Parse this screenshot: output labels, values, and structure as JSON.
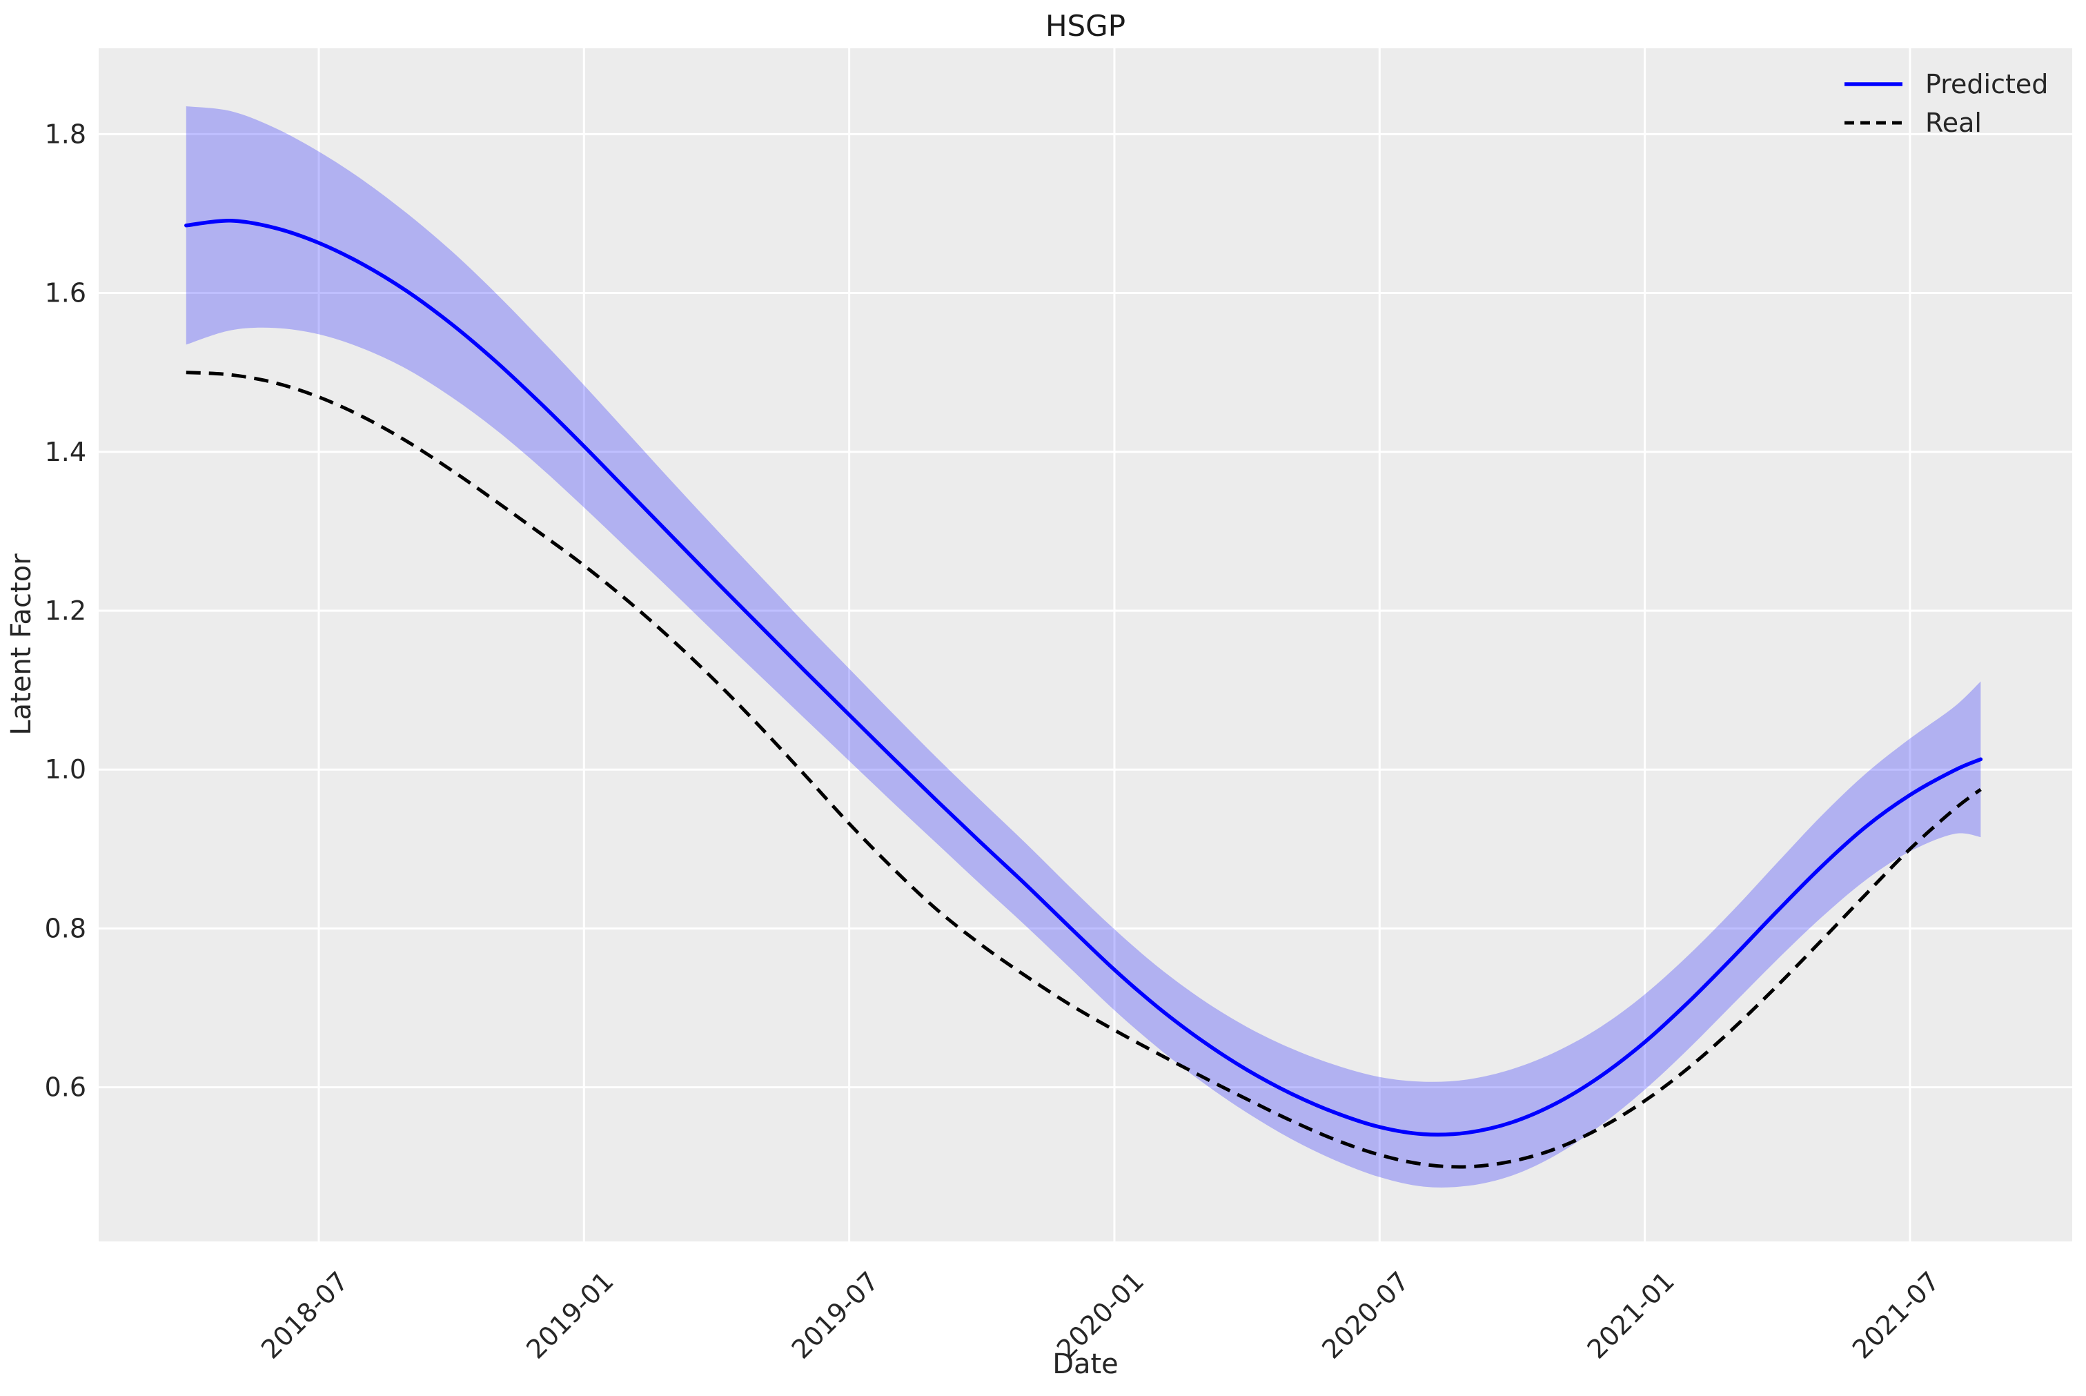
{
  "chart_data": {
    "type": "line",
    "title": "HSGP",
    "xlabel": "Date",
    "ylabel": "Latent Factor",
    "x_unit": "months since 2018-04",
    "x": [
      0,
      1,
      2,
      3,
      4,
      5,
      6,
      7,
      8,
      9,
      10,
      11,
      12,
      13,
      14,
      15,
      16,
      17,
      18,
      19,
      20,
      21,
      22,
      23,
      24,
      25,
      26,
      27,
      28,
      29,
      30,
      31,
      32,
      33,
      34,
      35,
      36,
      37,
      38,
      39,
      40,
      40.6
    ],
    "series": [
      {
        "name": "Predicted",
        "color": "#0000ff",
        "style": "solid",
        "values": [
          1.685,
          1.691,
          1.682,
          1.663,
          1.636,
          1.602,
          1.561,
          1.514,
          1.462,
          1.407,
          1.35,
          1.293,
          1.236,
          1.18,
          1.124,
          1.069,
          1.014,
          0.96,
          0.907,
          0.855,
          0.801,
          0.748,
          0.7,
          0.658,
          0.622,
          0.592,
          0.568,
          0.55,
          0.541,
          0.543,
          0.556,
          0.58,
          0.614,
          0.657,
          0.708,
          0.764,
          0.822,
          0.878,
          0.928,
          0.968,
          0.999,
          1.013
        ]
      },
      {
        "name": "Real",
        "color": "#000000",
        "style": "dashed",
        "values": [
          1.5,
          1.497,
          1.487,
          1.469,
          1.444,
          1.413,
          1.377,
          1.338,
          1.298,
          1.257,
          1.212,
          1.163,
          1.11,
          1.053,
          0.993,
          0.932,
          0.875,
          0.823,
          0.779,
          0.74,
          0.704,
          0.672,
          0.642,
          0.613,
          0.585,
          0.558,
          0.534,
          0.515,
          0.503,
          0.5,
          0.507,
          0.523,
          0.549,
          0.583,
          0.625,
          0.674,
          0.728,
          0.785,
          0.843,
          0.9,
          0.95,
          0.975
        ]
      }
    ],
    "band": {
      "series": "Predicted",
      "fill": "#0000ff",
      "opacity": 0.25,
      "upper": [
        1.835,
        1.829,
        1.808,
        1.778,
        1.742,
        1.7,
        1.653,
        1.6,
        1.543,
        1.484,
        1.423,
        1.362,
        1.302,
        1.243,
        1.184,
        1.127,
        1.07,
        1.014,
        0.96,
        0.907,
        0.852,
        0.799,
        0.751,
        0.71,
        0.676,
        0.649,
        0.628,
        0.613,
        0.607,
        0.61,
        0.623,
        0.645,
        0.676,
        0.717,
        0.767,
        0.823,
        0.883,
        0.942,
        0.995,
        1.039,
        1.079,
        1.111
      ],
      "lower": [
        1.535,
        1.553,
        1.556,
        1.548,
        1.53,
        1.504,
        1.469,
        1.428,
        1.381,
        1.33,
        1.277,
        1.224,
        1.17,
        1.117,
        1.064,
        1.011,
        0.958,
        0.906,
        0.854,
        0.803,
        0.75,
        0.697,
        0.649,
        0.606,
        0.568,
        0.535,
        0.508,
        0.487,
        0.475,
        0.476,
        0.489,
        0.515,
        0.552,
        0.597,
        0.649,
        0.705,
        0.761,
        0.814,
        0.861,
        0.897,
        0.919,
        0.915
      ]
    },
    "x_ticks": [
      {
        "label": "2018-07",
        "month": 3
      },
      {
        "label": "2019-01",
        "month": 9
      },
      {
        "label": "2019-07",
        "month": 15
      },
      {
        "label": "2020-01",
        "month": 21
      },
      {
        "label": "2020-07",
        "month": 27
      },
      {
        "label": "2021-01",
        "month": 33
      },
      {
        "label": "2021-07",
        "month": 39
      }
    ],
    "y_ticks": [
      "1.8",
      "1.6",
      "1.4",
      "1.2",
      "1.0",
      "0.8",
      "0.6"
    ],
    "y_tick_values": [
      1.8,
      1.6,
      1.4,
      1.2,
      1.0,
      0.8,
      0.6
    ],
    "ylim": [
      0.406,
      1.908
    ],
    "xlim_months": [
      -1.98,
      42.67
    ],
    "grid": true,
    "legend": {
      "position": "upper right",
      "entries": [
        "Predicted",
        "Real"
      ]
    },
    "colors": {
      "axes_background": "#ececec",
      "grid": "#ffffff",
      "predicted": "#0000ff",
      "real": "#000000",
      "band": "#0000ff",
      "text": "#262626"
    }
  }
}
